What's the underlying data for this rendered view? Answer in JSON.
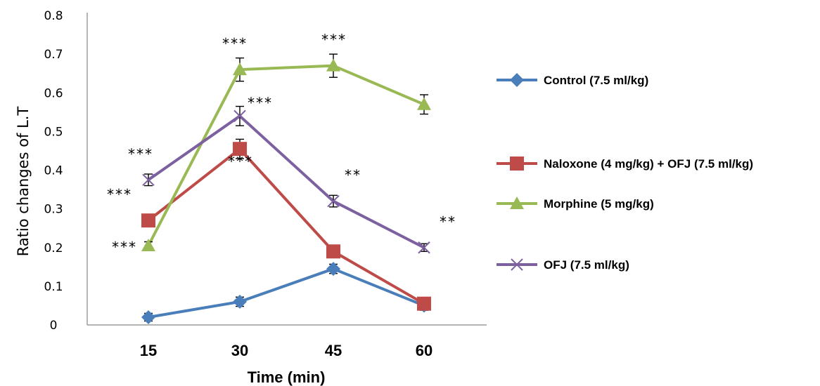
{
  "chart_data": {
    "type": "line",
    "xlabel": "Time (min)",
    "ylabel": "Ratio changes of L.T",
    "categories": [
      "15",
      "30",
      "45",
      "60"
    ],
    "ylim": [
      0,
      0.8
    ],
    "yticks": [
      "0",
      "0.1",
      "0.2",
      "0.3",
      "0.4",
      "0.5",
      "0.6",
      "0.7",
      "0.8"
    ],
    "grid": false,
    "legend_position": "right",
    "series": [
      {
        "name": "Control (7.5 ml/kg)",
        "marker": "diamond",
        "color": "#4a7ebb",
        "values": [
          0.02,
          0.06,
          0.145,
          0.05
        ],
        "errors": [
          0.01,
          0.012,
          0.012,
          0.012
        ],
        "significance": [
          "",
          "",
          "",
          ""
        ]
      },
      {
        "name": "Naloxone (4 mg/kg) + OFJ (7.5 ml/kg)",
        "marker": "square",
        "color": "#be4b48",
        "values": [
          0.27,
          0.455,
          0.19,
          0.055
        ],
        "errors": [
          0.012,
          0.025,
          0.012,
          0.012
        ],
        "significance": [
          "***",
          "***",
          "",
          ""
        ]
      },
      {
        "name": "Morphine (5 mg/kg)",
        "marker": "triangle",
        "color": "#98b954",
        "values": [
          0.205,
          0.66,
          0.67,
          0.57
        ],
        "errors": [
          0.01,
          0.03,
          0.03,
          0.025
        ],
        "significance": [
          "***",
          "***",
          "***",
          ""
        ]
      },
      {
        "name": "OFJ (7.5 ml/kg)",
        "marker": "x",
        "color": "#7d60a0",
        "values": [
          0.375,
          0.54,
          0.32,
          0.2
        ],
        "errors": [
          0.015,
          0.025,
          0.015,
          0.01
        ],
        "significance": [
          "***",
          "***",
          "**",
          "**"
        ]
      }
    ]
  }
}
